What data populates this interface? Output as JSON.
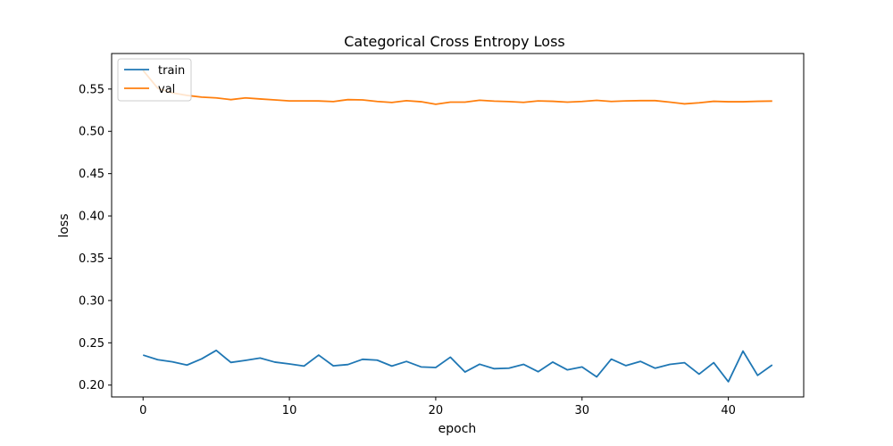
{
  "chart_data": {
    "type": "line",
    "title": "Categorical Cross Entropy Loss",
    "xlabel": "epoch",
    "ylabel": "loss",
    "xlim": [
      -2.15,
      45.15
    ],
    "ylim": [
      0.186,
      0.592
    ],
    "xticks": [
      0,
      10,
      20,
      30,
      40
    ],
    "yticks": [
      0.2,
      0.25,
      0.3,
      0.35,
      0.4,
      0.45,
      0.5,
      0.55
    ],
    "ytick_labels": [
      "0.20",
      "0.25",
      "0.30",
      "0.35",
      "0.40",
      "0.45",
      "0.50",
      "0.55"
    ],
    "xtick_labels": [
      "0",
      "10",
      "20",
      "30",
      "40"
    ],
    "grid": false,
    "legend_position": "upper-left",
    "x": [
      0,
      1,
      2,
      3,
      4,
      5,
      6,
      7,
      8,
      9,
      10,
      11,
      12,
      13,
      14,
      15,
      16,
      17,
      18,
      19,
      20,
      21,
      22,
      23,
      24,
      25,
      26,
      27,
      28,
      29,
      30,
      31,
      32,
      33,
      34,
      35,
      36,
      37,
      38,
      39,
      40,
      41,
      42,
      43
    ],
    "series": [
      {
        "name": "train",
        "color": "#1f77b4",
        "values": [
          0.2355,
          0.23,
          0.2275,
          0.2237,
          0.231,
          0.241,
          0.2268,
          0.2292,
          0.232,
          0.2272,
          0.225,
          0.2225,
          0.2355,
          0.2228,
          0.2243,
          0.2305,
          0.2295,
          0.2225,
          0.228,
          0.2215,
          0.2208,
          0.233,
          0.2155,
          0.2247,
          0.2194,
          0.22,
          0.2245,
          0.2158,
          0.2272,
          0.218,
          0.2215,
          0.2097,
          0.2307,
          0.223,
          0.228,
          0.22,
          0.2245,
          0.2265,
          0.213,
          0.2265,
          0.204,
          0.2402,
          0.2115,
          0.2238
        ]
      },
      {
        "name": "val",
        "color": "#ff7f0e",
        "values": [
          0.572,
          0.551,
          0.5455,
          0.5425,
          0.5405,
          0.5395,
          0.5375,
          0.5395,
          0.5383,
          0.5372,
          0.536,
          0.536,
          0.5359,
          0.5352,
          0.5375,
          0.5372,
          0.5353,
          0.5341,
          0.5362,
          0.535,
          0.532,
          0.5345,
          0.5345,
          0.5368,
          0.5357,
          0.5352,
          0.5343,
          0.536,
          0.5355,
          0.5345,
          0.5353,
          0.5366,
          0.5353,
          0.536,
          0.5363,
          0.5363,
          0.5345,
          0.5325,
          0.5337,
          0.5355,
          0.535,
          0.535,
          0.5355,
          0.5358
        ]
      }
    ]
  }
}
